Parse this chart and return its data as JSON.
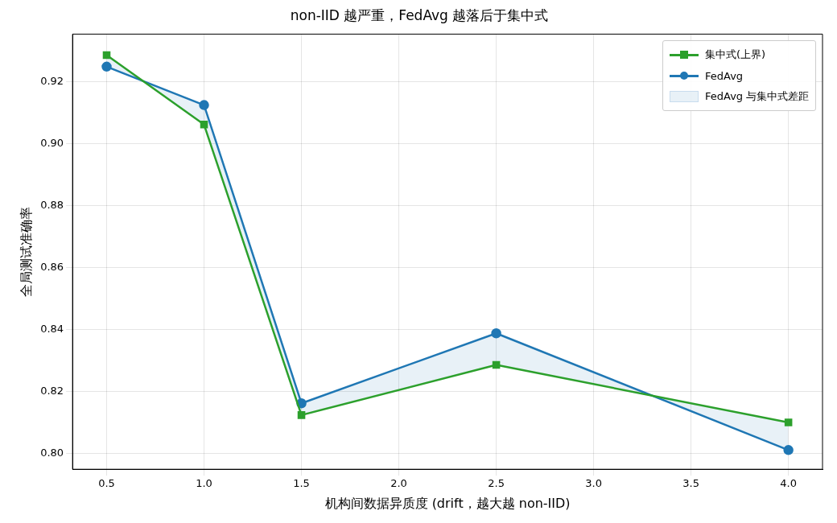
{
  "chart_data": {
    "type": "line",
    "title": "non-IID 越严重，FedAvg 越落后于集中式",
    "xlabel": "机构间数据异质度 (drift，越大越 non-IID)",
    "ylabel": "全局测试准确率",
    "x": [
      0.5,
      1.0,
      1.5,
      2.5,
      4.0
    ],
    "series": [
      {
        "name": "集中式(上界)",
        "color": "#2ca02c",
        "marker": "square",
        "values": [
          0.9286,
          0.9062,
          0.8124,
          0.8286,
          0.81
        ]
      },
      {
        "name": "FedAvg",
        "color": "#1f77b4",
        "marker": "circle",
        "values": [
          0.9249,
          0.9125,
          0.8162,
          0.8388,
          0.8011
        ],
        "lower": [
          0.9286,
          0.9062,
          0.8124,
          0.8286,
          0.81
        ],
        "upper": [
          0.9249,
          0.9125,
          0.8162,
          0.8388,
          0.8011
        ]
      }
    ],
    "annotations": [
      "FedAvg 与集中式差距"
    ],
    "xlim": [
      0.325,
      4.175
    ],
    "ylim": [
      0.7949,
      0.9354
    ],
    "xticks": [
      {
        "value": 0.5,
        "label": "0.5"
      },
      {
        "value": 1.0,
        "label": "1.0"
      },
      {
        "value": 1.5,
        "label": "1.5"
      },
      {
        "value": 2.0,
        "label": "2.0"
      },
      {
        "value": 2.5,
        "label": "2.5"
      },
      {
        "value": 3.0,
        "label": "3.0"
      },
      {
        "value": 3.5,
        "label": "3.5"
      },
      {
        "value": 4.0,
        "label": "4.0"
      }
    ],
    "yticks": [
      {
        "value": 0.8,
        "label": "0.80"
      },
      {
        "value": 0.82,
        "label": "0.82"
      },
      {
        "value": 0.84,
        "label": "0.84"
      },
      {
        "value": 0.86,
        "label": "0.86"
      },
      {
        "value": 0.88,
        "label": "0.88"
      },
      {
        "value": 0.9,
        "label": "0.90"
      },
      {
        "value": 0.92,
        "label": "0.92"
      }
    ],
    "grid": true,
    "legend": "top right",
    "line_style": "solid"
  }
}
